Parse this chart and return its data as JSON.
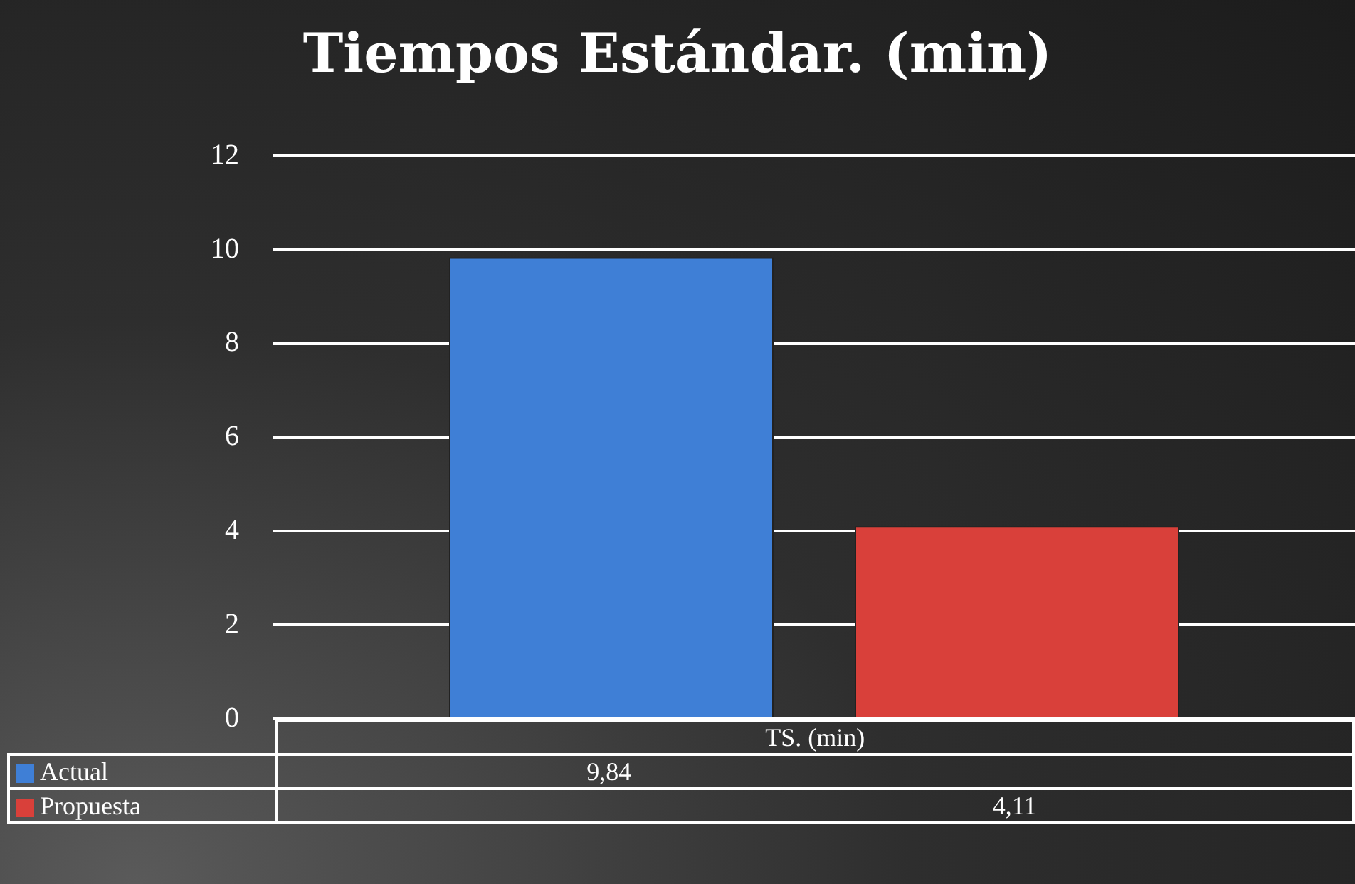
{
  "chart_data": {
    "type": "bar",
    "title": "Tiempos Estándar. (min)",
    "categories": [
      "TS. (min)"
    ],
    "series": [
      {
        "name": "Actual",
        "color": "#3f7fd6",
        "values": [
          9.84
        ],
        "value_labels": [
          "9,84"
        ]
      },
      {
        "name": "Propuesta",
        "color": "#d9403a",
        "values": [
          4.11
        ],
        "value_labels": [
          "4,11"
        ]
      }
    ],
    "ylim": [
      0,
      12
    ],
    "yticks": [
      0,
      2,
      4,
      6,
      8,
      10,
      12
    ],
    "grid": "y",
    "legend": "bottom"
  }
}
